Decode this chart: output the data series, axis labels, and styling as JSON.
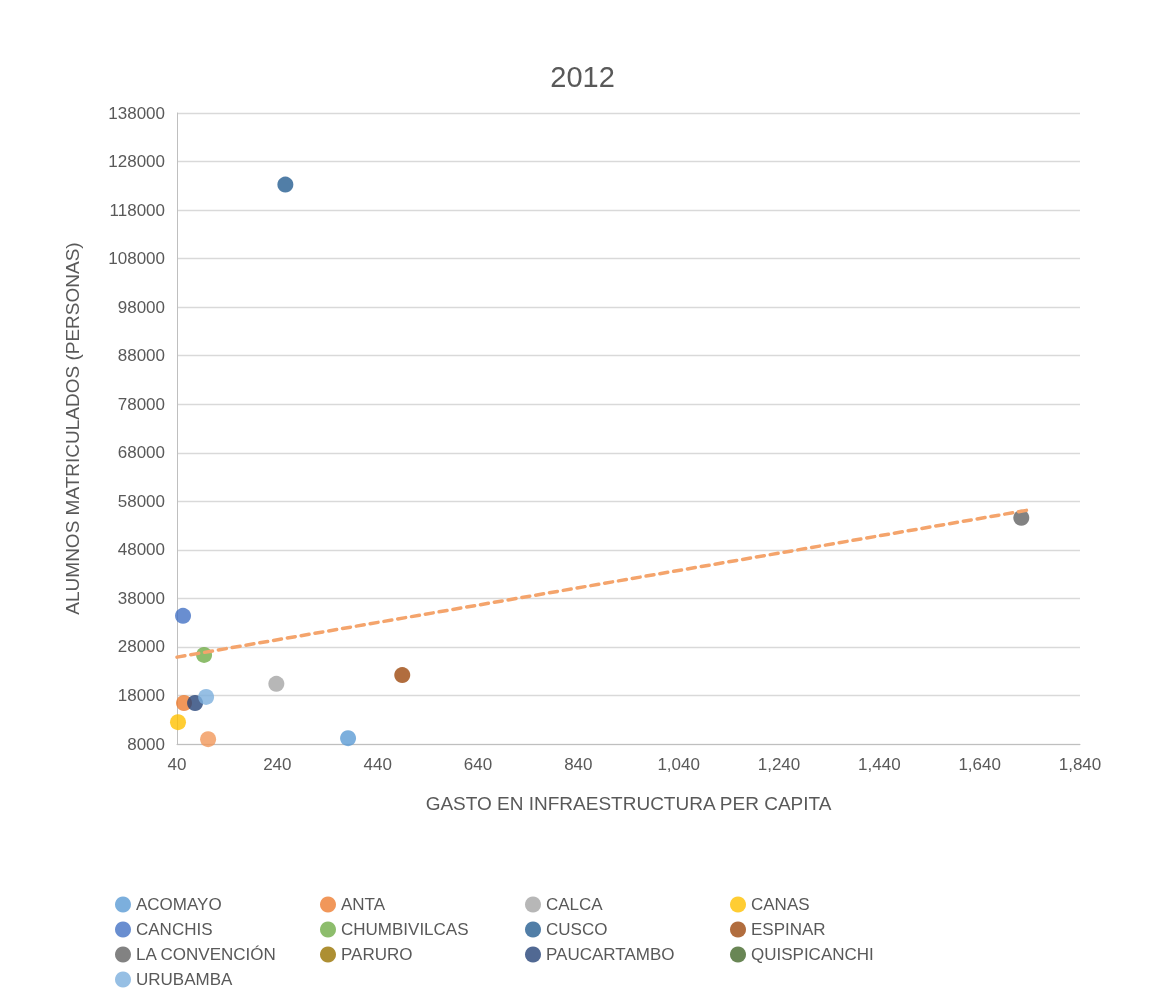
{
  "chart_data": {
    "type": "scatter",
    "title": "2012",
    "xlabel": "GASTO EN INFRAESTRUCTURA PER CAPITA",
    "ylabel": "ALUMNOS MATRICULADOS (PERSONAS)",
    "xlim": [
      40,
      1840
    ],
    "xticks": [
      40,
      240,
      440,
      640,
      840,
      {
        "value": 1040,
        "label": "1,040"
      },
      {
        "value": 1240,
        "label": "1,240"
      },
      {
        "value": 1440,
        "label": "1,440"
      },
      {
        "value": 1640,
        "label": "1,640"
      },
      {
        "value": 1840,
        "label": "1,840"
      }
    ],
    "ylim": [
      8000,
      138000
    ],
    "yticks": [
      8000,
      18000,
      28000,
      38000,
      48000,
      58000,
      68000,
      78000,
      88000,
      98000,
      108000,
      118000,
      128000,
      138000
    ],
    "grid": "y",
    "legend": "bottom",
    "marker": "circle",
    "series": [
      {
        "name": "ACOMAYO",
        "color": "#5b9bd5",
        "x": [
          381
        ],
        "values": [
          9200
        ]
      },
      {
        "name": "ANTA",
        "color": "#ed7d31",
        "x": [
          54
        ],
        "values": [
          16450
        ]
      },
      {
        "name": "CALCA",
        "color": "#a5a5a5",
        "x": [
          238
        ],
        "values": [
          20400
        ]
      },
      {
        "name": "CANAS",
        "color": "#ffc000",
        "x": [
          42
        ],
        "values": [
          12500
        ]
      },
      {
        "name": "CANCHIS",
        "color": "#4472c4",
        "x": [
          52
        ],
        "values": [
          34400
        ]
      },
      {
        "name": "CHUMBIVILCAS",
        "color": "#70ad47",
        "x": [
          94
        ],
        "values": [
          26350
        ]
      },
      {
        "name": "CUSCO",
        "color": "#255e91",
        "x": [
          256
        ],
        "values": [
          123250
        ]
      },
      {
        "name": "ESPINAR",
        "color": "#9e480e",
        "x": [
          489
        ],
        "values": [
          22200
        ]
      },
      {
        "name": "LA CONVENCIÓN",
        "color": "#636363",
        "x": [
          1723
        ],
        "values": [
          54600
        ]
      },
      {
        "name": "PARURO",
        "color": "#997300",
        "x": [
          null
        ],
        "values": [
          null
        ]
      },
      {
        "name": "PAUCARTAMBO",
        "color": "#264478",
        "x": [
          76
        ],
        "values": [
          16450
        ]
      },
      {
        "name": "QUISPICANCHI",
        "color": "#43682b",
        "x": [
          null
        ],
        "values": [
          null
        ]
      },
      {
        "name": "URUBAMBA",
        "color": "#7cafdd",
        "x": [
          98
        ],
        "values": [
          17700
        ]
      },
      {
        "color": "#f1975a",
        "x": [
          102
        ],
        "values": [
          9000
        ]
      },
      {
        "type": "line",
        "color": "#f4a46c",
        "line_style": "dashed",
        "marker": "none",
        "x": [
          40,
          1740
        ],
        "values": [
          25900,
          56250
        ]
      }
    ]
  }
}
